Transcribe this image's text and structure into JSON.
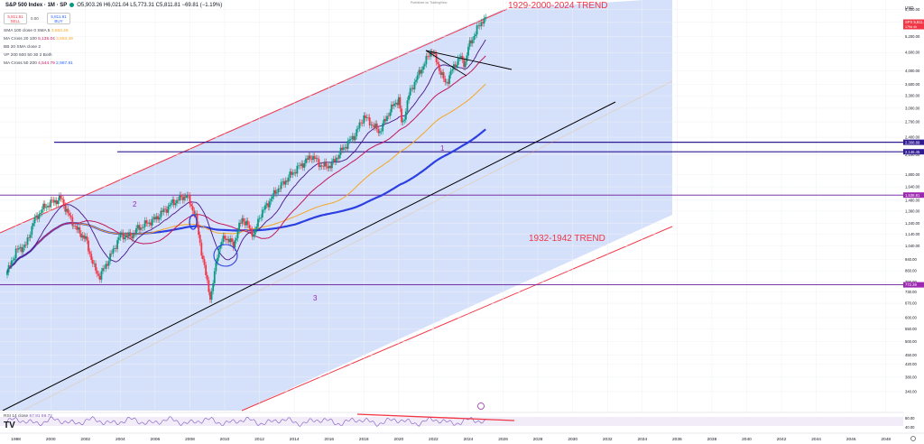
{
  "header": {
    "symbol": "S&P 500 Index · 1M · SP",
    "ohlc": "O5,903.26 H6,021.04 L5,773.31 C5,811.81 −69.81 (−1.19%)",
    "sell_price": "5,811.81",
    "sell_label": "SELL",
    "buy_price": "5,811.81",
    "buy_label": "BUY",
    "spread": "0.00",
    "published": "Published on TradingView"
  },
  "indicators": [
    {
      "name": "SMA 100 close 0 SMA 5",
      "values": [
        "3,663.49"
      ]
    },
    {
      "name": "MA Cross 20 100",
      "values": [
        "5,135.04",
        "3,663.49"
      ]
    },
    {
      "name": "BB 20 SMA close 2",
      "values": []
    },
    {
      "name": "VP 200 500 50 30 2 Both",
      "values": []
    },
    {
      "name": "MA Cross 50 200",
      "values": [
        "4,544.79",
        "2,987.81"
      ]
    }
  ],
  "rsi": {
    "name": "RSI 14 close",
    "values": [
      "67.81",
      "69.72"
    ]
  },
  "price_axis": {
    "unit": "USD",
    "ticks": [
      "6,400.00",
      "5,800.00",
      "5,200.00",
      "4,600.00",
      "4,000.00",
      "3,600.00",
      "3,300.00",
      "3,000.00",
      "2,700.00",
      "2,400.00",
      "2,100.00",
      "1,800.00",
      "1,640.00",
      "1,480.00",
      "1,360.00",
      "1,240.00",
      "1,140.00",
      "1,040.00",
      "940.00",
      "860.00",
      "790.00",
      "730.00",
      "670.00",
      "600.00",
      "550.00",
      "500.00",
      "450.00",
      "420.00",
      "380.00",
      "340.00"
    ],
    "labels": [
      {
        "text": "SPX 5,811.81",
        "sub": "179d 4h",
        "color": "#f23645",
        "value": 5811.81
      },
      {
        "text": "2,308.89",
        "color": "#311b92",
        "value": 2308.89
      },
      {
        "text": "2,146.45",
        "color": "#311b92",
        "value": 2146.45
      },
      {
        "text": "1,538.81",
        "color": "#9c27b0",
        "value": 1538.81
      },
      {
        "text": "772.39",
        "color": "#9c27b0",
        "value": 772.39
      }
    ]
  },
  "rsi_axis": {
    "ticks": [
      "80.00",
      "40.00"
    ]
  },
  "time_axis": {
    "ticks": [
      "1998",
      "2000",
      "2002",
      "2004",
      "2006",
      "2008",
      "2010",
      "2012",
      "2014",
      "2016",
      "2018",
      "2020",
      "2022",
      "2024",
      "2026",
      "2028",
      "2030",
      "2032",
      "2034",
      "2036",
      "2038",
      "2040",
      "2042",
      "2044",
      "2046",
      "2048"
    ]
  },
  "annotations": {
    "trend1": "1929-2000-2024 TREND",
    "trend2": "1932-1942 TREND",
    "label1": "1",
    "label2": "2",
    "label3": "3"
  },
  "colors": {
    "channel_fill": "#d3defb",
    "channel_line": "#f23645",
    "up": "#089981",
    "down": "#f23645",
    "ma_blue": "#2c3fe0",
    "ma_orange": "#f5a623",
    "ma_crimson": "#c2185b",
    "ma_purple": "#4a148c",
    "hline_purple": "#6a1b9a",
    "hline_blue": "#311b92"
  },
  "chart_data": {
    "type": "candlestick",
    "scale": "log",
    "x_range": [
      1997.5,
      2049.0
    ],
    "y_range": [
      300,
      6700
    ],
    "horizontal_levels": [
      2308.89,
      2146.45,
      1538.81,
      772.39
    ],
    "price_path": [
      [
        1997.5,
        850
      ],
      [
        1998.0,
        1000
      ],
      [
        1998.6,
        1050
      ],
      [
        1999.0,
        1250
      ],
      [
        1999.5,
        1380
      ],
      [
        2000.0,
        1450
      ],
      [
        2000.6,
        1500
      ],
      [
        2001.0,
        1330
      ],
      [
        2001.5,
        1180
      ],
      [
        2002.0,
        1100
      ],
      [
        2002.5,
        880
      ],
      [
        2002.8,
        820
      ],
      [
        2003.0,
        860
      ],
      [
        2003.5,
        980
      ],
      [
        2004.0,
        1130
      ],
      [
        2004.6,
        1120
      ],
      [
        2005.0,
        1190
      ],
      [
        2006.0,
        1280
      ],
      [
        2007.0,
        1450
      ],
      [
        2007.8,
        1540
      ],
      [
        2008.3,
        1330
      ],
      [
        2008.8,
        900
      ],
      [
        2009.2,
        690
      ],
      [
        2009.6,
        1000
      ],
      [
        2010.0,
        1120
      ],
      [
        2010.5,
        1050
      ],
      [
        2011.0,
        1290
      ],
      [
        2011.7,
        1130
      ],
      [
        2012.0,
        1310
      ],
      [
        2013.0,
        1600
      ],
      [
        2014.0,
        1850
      ],
      [
        2015.0,
        2080
      ],
      [
        2015.6,
        1920
      ],
      [
        2016.1,
        1930
      ],
      [
        2016.8,
        2200
      ],
      [
        2017.5,
        2450
      ],
      [
        2018.0,
        2820
      ],
      [
        2018.9,
        2500
      ],
      [
        2019.5,
        2950
      ],
      [
        2020.0,
        3230
      ],
      [
        2020.2,
        2590
      ],
      [
        2020.6,
        3350
      ],
      [
        2021.0,
        3750
      ],
      [
        2021.9,
        4700
      ],
      [
        2022.7,
        3600
      ],
      [
        2023.0,
        3950
      ],
      [
        2023.5,
        4450
      ],
      [
        2023.8,
        4200
      ],
      [
        2024.0,
        4780
      ],
      [
        2024.5,
        5500
      ],
      [
        2024.9,
        6000
      ],
      [
        2025.05,
        5811
      ]
    ]
  }
}
